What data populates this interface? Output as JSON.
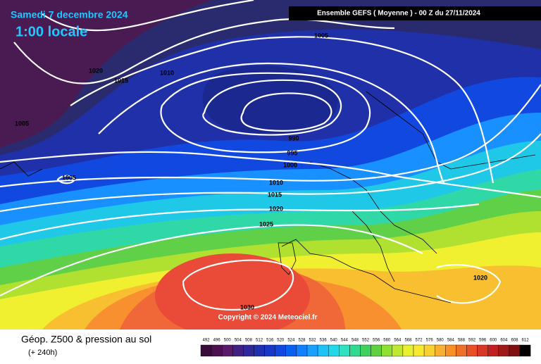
{
  "header": {
    "date": "Samedi 7 decembre 2024",
    "time": "1:00 locale",
    "run": "Ensemble GEFS  ( Moyenne )  -  00 Z du 27/11/2024"
  },
  "isobars": [
    "1005",
    "1020",
    "1015",
    "1010",
    "1005",
    "990",
    "995",
    "1000",
    "1005",
    "1010",
    "1015",
    "1020",
    "1025",
    "1030",
    "1020"
  ],
  "copyright": "Copyright © 2024 Meteociel.fr",
  "footer": {
    "title": "Géop. Z500 & pression au sol",
    "subtitle": "(+ 240h)"
  },
  "legend": {
    "labels": [
      492,
      496,
      500,
      504,
      508,
      512,
      516,
      520,
      524,
      528,
      532,
      536,
      540,
      544,
      548,
      552,
      556,
      560,
      564,
      568,
      572,
      576,
      580,
      584,
      588,
      592,
      596,
      600,
      604,
      608,
      612
    ],
    "colors": [
      "#3a0a3a",
      "#4a1050",
      "#5a1a68",
      "#402080",
      "#302898",
      "#2030b0",
      "#1838c8",
      "#1048e0",
      "#0860f0",
      "#1080ff",
      "#18a0ff",
      "#20c0f8",
      "#20d8e8",
      "#30e0c0",
      "#30d890",
      "#40d060",
      "#60d040",
      "#90e030",
      "#c0e830",
      "#e8f030",
      "#f8e830",
      "#f8d030",
      "#f8b030",
      "#f89028",
      "#f07028",
      "#e85028",
      "#d83828",
      "#c02020",
      "#a01818",
      "#801010",
      "#000000"
    ]
  }
}
